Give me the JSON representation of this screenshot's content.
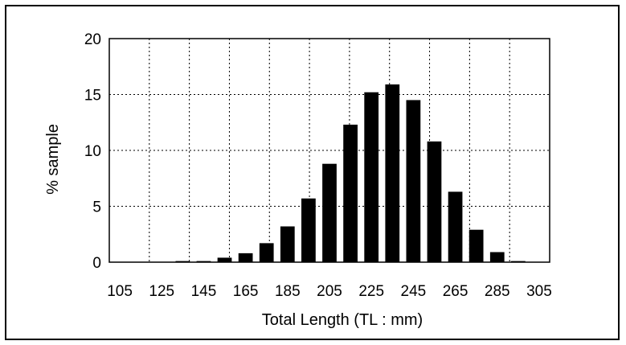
{
  "chart_data": {
    "type": "bar",
    "title": "",
    "xlabel": "Total Length (TL : mm)",
    "ylabel": "% sample",
    "ylim": [
      0,
      20
    ],
    "yticks": [
      "0",
      "5",
      "10",
      "15",
      "20"
    ],
    "xticks": [
      "105",
      "125",
      "145",
      "165",
      "185",
      "205",
      "225",
      "245",
      "265",
      "285",
      "305"
    ],
    "categories": [
      "105",
      "115",
      "125",
      "135",
      "145",
      "155",
      "165",
      "175",
      "185",
      "195",
      "205",
      "215",
      "225",
      "235",
      "245",
      "255",
      "265",
      "275",
      "285",
      "295",
      "305"
    ],
    "values": [
      0,
      0,
      0,
      0.1,
      0.1,
      0.4,
      0.8,
      1.7,
      3.2,
      5.7,
      8.8,
      12.3,
      15.2,
      15.9,
      14.5,
      10.8,
      6.3,
      2.9,
      0.9,
      0.1,
      0
    ],
    "grid": true,
    "bar_color": "#000000"
  }
}
